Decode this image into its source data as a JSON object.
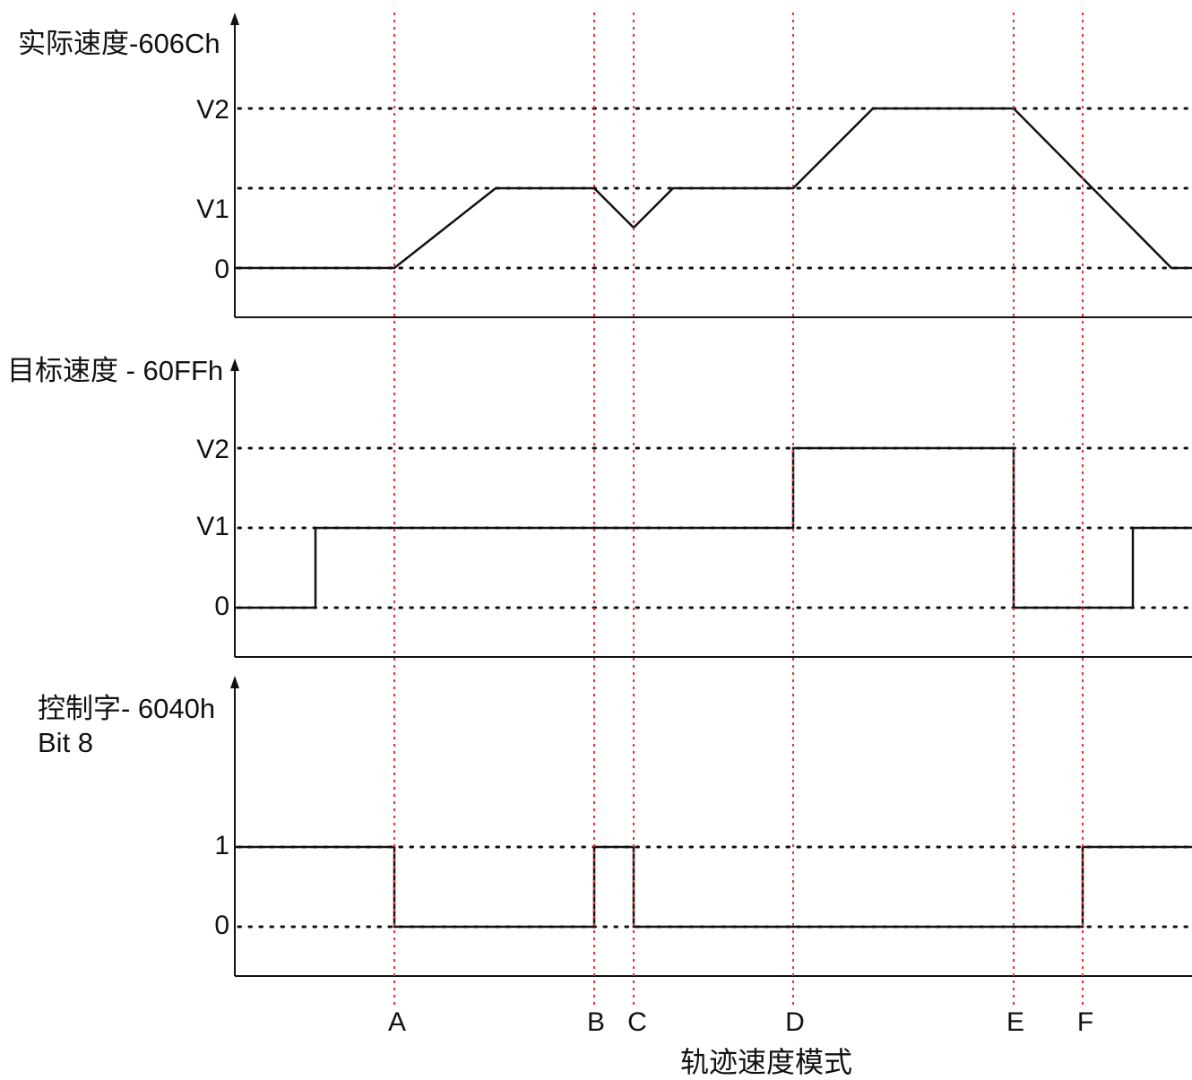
{
  "title": "轨迹速度模式",
  "colors": {
    "marker": "#e8302a",
    "signal": "#111111"
  },
  "markers": [
    "A",
    "B",
    "C",
    "D",
    "E",
    "F"
  ],
  "panels": [
    {
      "label": "实际速度-606Ch",
      "label_line2": "",
      "levels": [
        {
          "name": "V2",
          "value": 2
        },
        {
          "name": "V1",
          "value": 1
        },
        {
          "name": "0",
          "value": 0
        }
      ],
      "signal": [
        {
          "t": "start",
          "v": 0
        },
        {
          "t": "A",
          "v": 0
        },
        {
          "t": "A+",
          "v": 1
        },
        {
          "t": "B",
          "v": 1
        },
        {
          "t": "C",
          "v": 0.5
        },
        {
          "t": "C+",
          "v": 1
        },
        {
          "t": "D",
          "v": 1
        },
        {
          "t": "D+",
          "v": 2
        },
        {
          "t": "E",
          "v": 2
        },
        {
          "t": "F",
          "v": 1
        },
        {
          "t": "F+",
          "v": 0
        },
        {
          "t": "end",
          "v": 0
        }
      ]
    },
    {
      "label": "目标速度 - 60FFh",
      "label_line2": "",
      "levels": [
        {
          "name": "V2",
          "value": 2
        },
        {
          "name": "V1",
          "value": 1
        },
        {
          "name": "0",
          "value": 0
        }
      ],
      "signal": [
        {
          "t": "start",
          "v": 0
        },
        {
          "t": "before-A",
          "v": 0
        },
        {
          "t": "before-A",
          "v": 1
        },
        {
          "t": "D",
          "v": 1
        },
        {
          "t": "D",
          "v": 2
        },
        {
          "t": "E",
          "v": 2
        },
        {
          "t": "E",
          "v": 0
        },
        {
          "t": "after-F",
          "v": 0
        },
        {
          "t": "after-F",
          "v": 1
        },
        {
          "t": "end",
          "v": 1
        }
      ]
    },
    {
      "label": "控制字- 6040h",
      "label_line2": "Bit 8",
      "levels": [
        {
          "name": "1",
          "value": 1
        },
        {
          "name": "0",
          "value": 0
        }
      ],
      "signal": [
        {
          "t": "start",
          "v": 1
        },
        {
          "t": "A",
          "v": 1
        },
        {
          "t": "A",
          "v": 0
        },
        {
          "t": "B",
          "v": 0
        },
        {
          "t": "B",
          "v": 1
        },
        {
          "t": "C",
          "v": 1
        },
        {
          "t": "C",
          "v": 0
        },
        {
          "t": "F",
          "v": 0
        },
        {
          "t": "F",
          "v": 1
        },
        {
          "t": "end",
          "v": 1
        }
      ]
    }
  ]
}
